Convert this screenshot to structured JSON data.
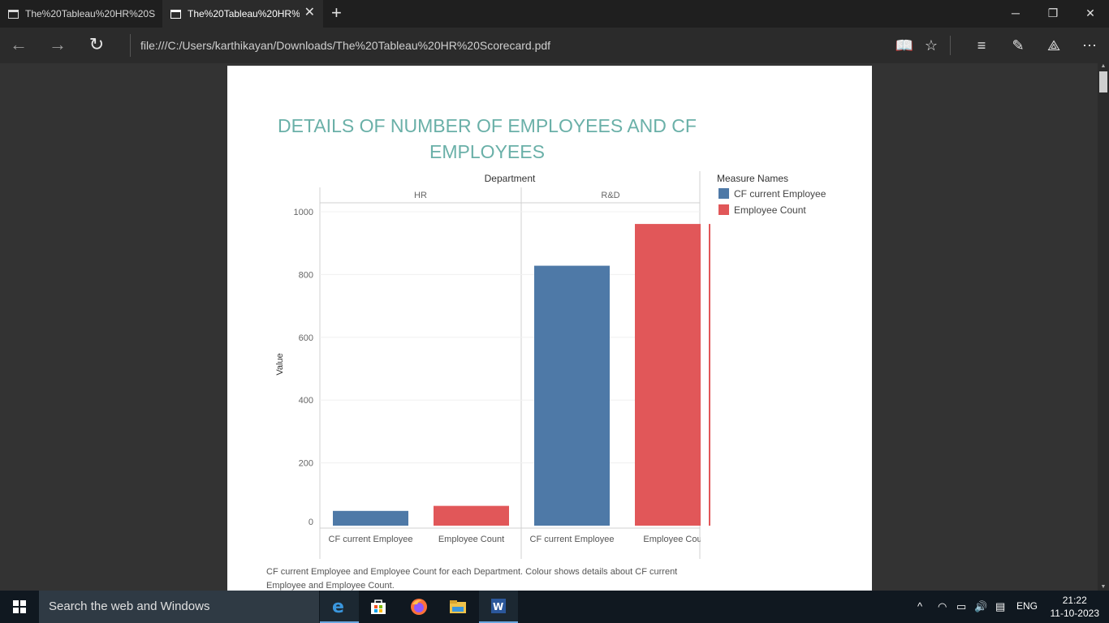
{
  "browser": {
    "tabs": [
      {
        "label": "The%20Tableau%20HR%20S"
      },
      {
        "label": "The%20Tableau%20HR%"
      }
    ],
    "url": "file:///C:/Users/karthikayan/Downloads/The%20Tableau%20HR%20Scorecard.pdf"
  },
  "report": {
    "title": "DETAILS OF NUMBER OF EMPLOYEES AND CF EMPLOYEES",
    "caption": "CF current Employee and Employee Count for each Department.  Colour shows details about CF current Employee and Employee Count."
  },
  "chart_data": {
    "type": "bar",
    "column_header": "Department",
    "departments": [
      "HR",
      "R&D"
    ],
    "categories": [
      "CF current Employee",
      "Employee Count"
    ],
    "category_labels": [
      "CF current Employee",
      "Employee Count",
      "CF current Employee",
      "Employee Cou"
    ],
    "ylabel": "Value",
    "ylim": [
      0,
      1000
    ],
    "yticks": [
      0,
      200,
      400,
      600,
      800,
      1000
    ],
    "series": [
      {
        "name": "CF current Employee",
        "color": "#4e79a7",
        "values": [
          47,
          828
        ]
      },
      {
        "name": "Employee Count",
        "color": "#e15759",
        "values": [
          63,
          961
        ]
      }
    ],
    "legend": {
      "title": "Measure Names",
      "placement": "right"
    },
    "grid": true
  },
  "taskbar": {
    "search_placeholder": "Search the web and Windows",
    "language": "ENG",
    "time": "21:22",
    "date": "11-10-2023"
  }
}
